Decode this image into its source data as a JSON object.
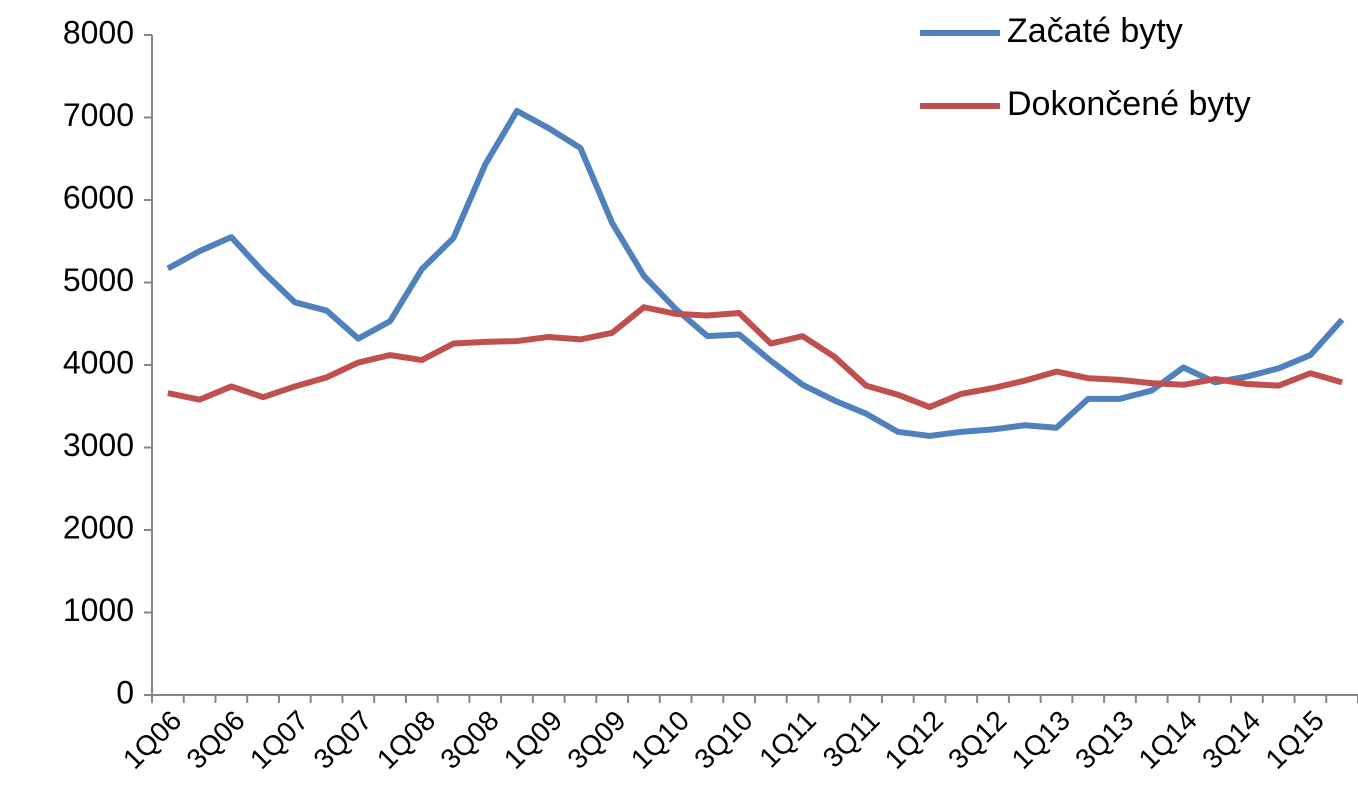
{
  "chart_data": {
    "type": "line",
    "categories": [
      "1Q06",
      null,
      "3Q06",
      null,
      "1Q07",
      null,
      "3Q07",
      null,
      "1Q08",
      null,
      "3Q08",
      null,
      "1Q09",
      null,
      "3Q09",
      null,
      "1Q10",
      null,
      "3Q10",
      null,
      "1Q11",
      null,
      "3Q11",
      null,
      "1Q12",
      null,
      "3Q12",
      null,
      "1Q13",
      null,
      "3Q13",
      null,
      "1Q14",
      null,
      "3Q14",
      null,
      "1Q15",
      null
    ],
    "series": [
      {
        "name": "Začaté byty",
        "color": "#4f81bd",
        "values": [
          5170,
          5380,
          5550,
          5130,
          4760,
          4660,
          4320,
          4530,
          5160,
          5540,
          6430,
          7080,
          6870,
          6630,
          5720,
          5080,
          4680,
          4350,
          4370,
          4050,
          3760,
          3570,
          3410,
          3190,
          3140,
          3190,
          3220,
          3270,
          3240,
          3590,
          3590,
          3690,
          3970,
          3790,
          3860,
          3960,
          4120,
          4550
        ]
      },
      {
        "name": "Dokončené byty",
        "color": "#c0504d",
        "values": [
          3660,
          3580,
          3740,
          3610,
          3740,
          3850,
          4030,
          4120,
          4060,
          4260,
          4280,
          4290,
          4340,
          4310,
          4390,
          4700,
          4620,
          4600,
          4630,
          4260,
          4350,
          4100,
          3750,
          3640,
          3490,
          3650,
          3720,
          3810,
          3920,
          3840,
          3820,
          3780,
          3760,
          3830,
          3770,
          3750,
          3900,
          3790
        ]
      }
    ],
    "ylim": [
      0,
      8000
    ],
    "yticks": [
      0,
      1000,
      2000,
      3000,
      4000,
      5000,
      6000,
      7000,
      8000
    ],
    "legend": "top-right"
  }
}
